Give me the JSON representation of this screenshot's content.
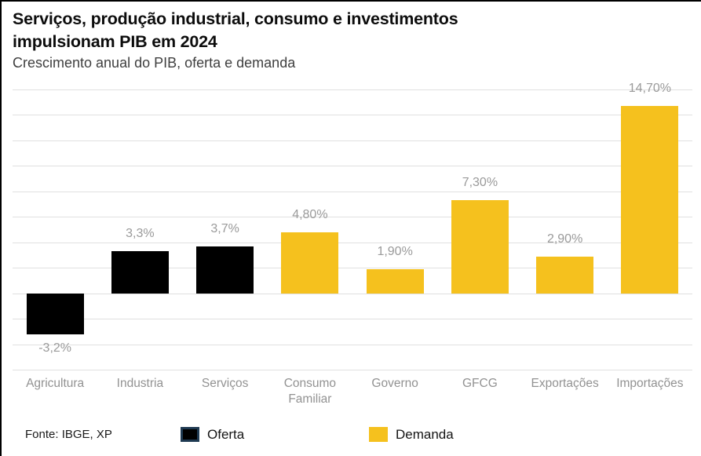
{
  "header": {
    "title_line1": "Serviços, produção industrial, consumo e investimentos",
    "title_line2": "impulsionam PIB em 2024",
    "subtitle": "Crescimento anual do PIB, oferta e demanda"
  },
  "footer": {
    "source": "Fonte: IBGE, XP"
  },
  "colors": {
    "oferta": "#000000",
    "oferta_swatch_border": "#1f3a52",
    "demanda": "#f5c11e",
    "grid": "#e0e0e0",
    "value_label_gray": "#9a9a9a",
    "category_label_gray": "#929292"
  },
  "chart_data": {
    "type": "bar",
    "title": "Serviços, produção industrial, consumo e investimentos impulsionam PIB em 2024",
    "subtitle": "Crescimento anual do PIB, oferta e demanda",
    "categories": [
      "Agricultura",
      "Industria",
      "Serviços",
      "Consumo Familiar",
      "Governo",
      "GFCG",
      "Exportações",
      "Importações"
    ],
    "values": [
      -3.2,
      3.3,
      3.7,
      4.8,
      1.9,
      7.3,
      2.9,
      14.7
    ],
    "value_labels": [
      "-3,2%",
      "3,3%",
      "3,7%",
      "4,80%",
      "1,90%",
      "7,30%",
      "2,90%",
      "14,70%"
    ],
    "groups": [
      "Oferta",
      "Oferta",
      "Oferta",
      "Demanda",
      "Demanda",
      "Demanda",
      "Demanda",
      "Demanda"
    ],
    "series": [
      {
        "name": "Oferta",
        "color": "#000000",
        "categories": [
          "Agricultura",
          "Industria",
          "Serviços"
        ],
        "values": [
          -3.2,
          3.3,
          3.7
        ]
      },
      {
        "name": "Demanda",
        "color": "#f5c11e",
        "categories": [
          "Consumo Familiar",
          "Governo",
          "GFCG",
          "Exportações",
          "Importações"
        ],
        "values": [
          4.8,
          1.9,
          7.3,
          2.9,
          14.7
        ]
      }
    ],
    "xlabel": "",
    "ylabel": "",
    "ylim": [
      -6,
      16
    ],
    "grid_step": 2,
    "grid": true,
    "y_axis_labels_visible": false,
    "legend_position": "bottom",
    "legend": [
      {
        "label": "Oferta",
        "color": "#000000"
      },
      {
        "label": "Demanda",
        "color": "#f5c11e"
      }
    ],
    "source": "Fonte: IBGE, XP"
  }
}
